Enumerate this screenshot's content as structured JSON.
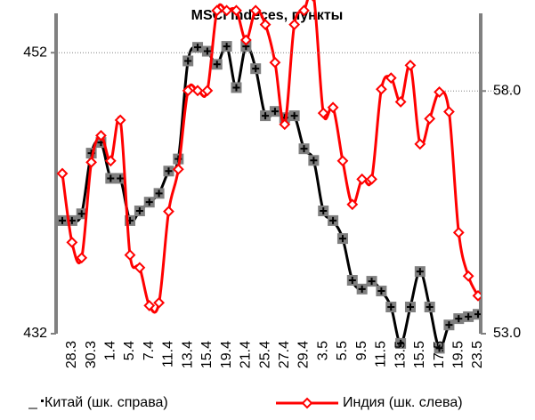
{
  "chart_data": {
    "type": "line",
    "title": "MSCI Indeces, пункты",
    "categories": [
      null,
      "28.3",
      null,
      "30.3",
      null,
      "1.4",
      null,
      "5.4",
      null,
      "7.4",
      null,
      "11.4",
      null,
      "13.4",
      null,
      "15.4",
      null,
      "19.4",
      null,
      "21.4",
      null,
      "25.4",
      null,
      "27.4",
      null,
      "29.4",
      null,
      "3.5",
      null,
      "5.5",
      null,
      "9.5",
      null,
      "11.5",
      null,
      "13.5",
      null,
      "15.5",
      null,
      "17.5",
      null,
      "19.5",
      null,
      "23.5"
    ],
    "series": [
      {
        "name": "Китай (шк. справа)",
        "color": "#000000",
        "marker_color": "#7f7f7f",
        "axis": "y2",
        "values": [
          55.33,
          55.33,
          55.47,
          56.72,
          56.94,
          56.2,
          56.2,
          55.33,
          55.53,
          55.71,
          55.89,
          56.35,
          56.6,
          58.62,
          58.9,
          58.82,
          58.55,
          58.92,
          58.07,
          58.92,
          58.46,
          57.49,
          57.58,
          57.45,
          57.49,
          56.81,
          56.57,
          55.53,
          55.33,
          54.96,
          54.1,
          53.92,
          54.08,
          53.88,
          53.55,
          52.8,
          53.55,
          54.28,
          53.55,
          52.7,
          53.18,
          53.31,
          53.35,
          53.4
        ]
      },
      {
        "name": "Индия (шк. слева)",
        "color": "#ff0000",
        "axis": "y",
        "values": [
          443.4,
          438.5,
          437.4,
          444.2,
          446.1,
          444.3,
          447.2,
          437.6,
          436.7,
          434.0,
          434.2,
          440.7,
          443.7,
          449.3,
          449.3,
          449.3,
          455,
          455,
          455,
          452.9,
          455,
          454,
          451.3,
          446.9,
          454,
          455,
          456,
          447.7,
          448.1,
          444.3,
          441.2,
          443,
          443,
          449.4,
          450.2,
          448.5,
          451.1,
          445.5,
          447.3,
          449.2,
          447.8,
          439.2,
          436.1,
          434.7
        ]
      }
    ],
    "ylim": [
      432,
      454.8
    ],
    "yticks": [
      432,
      452
    ],
    "y2lim": [
      53,
      59.6
    ],
    "y2ticks": [
      {
        "value": 53,
        "label": "53.0"
      },
      {
        "value": 58,
        "label": "58.0"
      }
    ],
    "grid": true,
    "legend": "bottom"
  }
}
